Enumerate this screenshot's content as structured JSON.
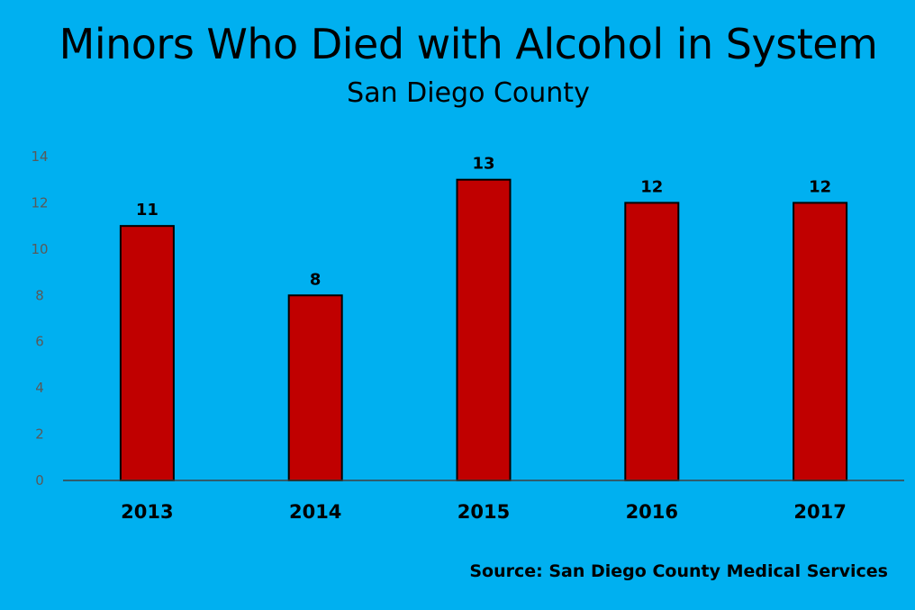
{
  "chart_data": {
    "type": "bar",
    "title": "Minors Who Died with Alcohol in System",
    "subtitle": "San Diego County",
    "source": "Source: San Diego County Medical Services",
    "categories": [
      "2013",
      "2014",
      "2015",
      "2016",
      "2017"
    ],
    "values": [
      11,
      8,
      13,
      12,
      12
    ],
    "ylim": [
      0,
      14
    ],
    "yticks": [
      0,
      2,
      4,
      6,
      8,
      10,
      12,
      14
    ],
    "xlabel": "",
    "ylabel": "",
    "grid": false,
    "legend": "none",
    "data_labels": true,
    "colors": {
      "background": "#00B0F0",
      "bar_fill": "#C00000",
      "bar_stroke": "#000000",
      "axis": "#404040",
      "ytick_text": "#595959"
    }
  }
}
